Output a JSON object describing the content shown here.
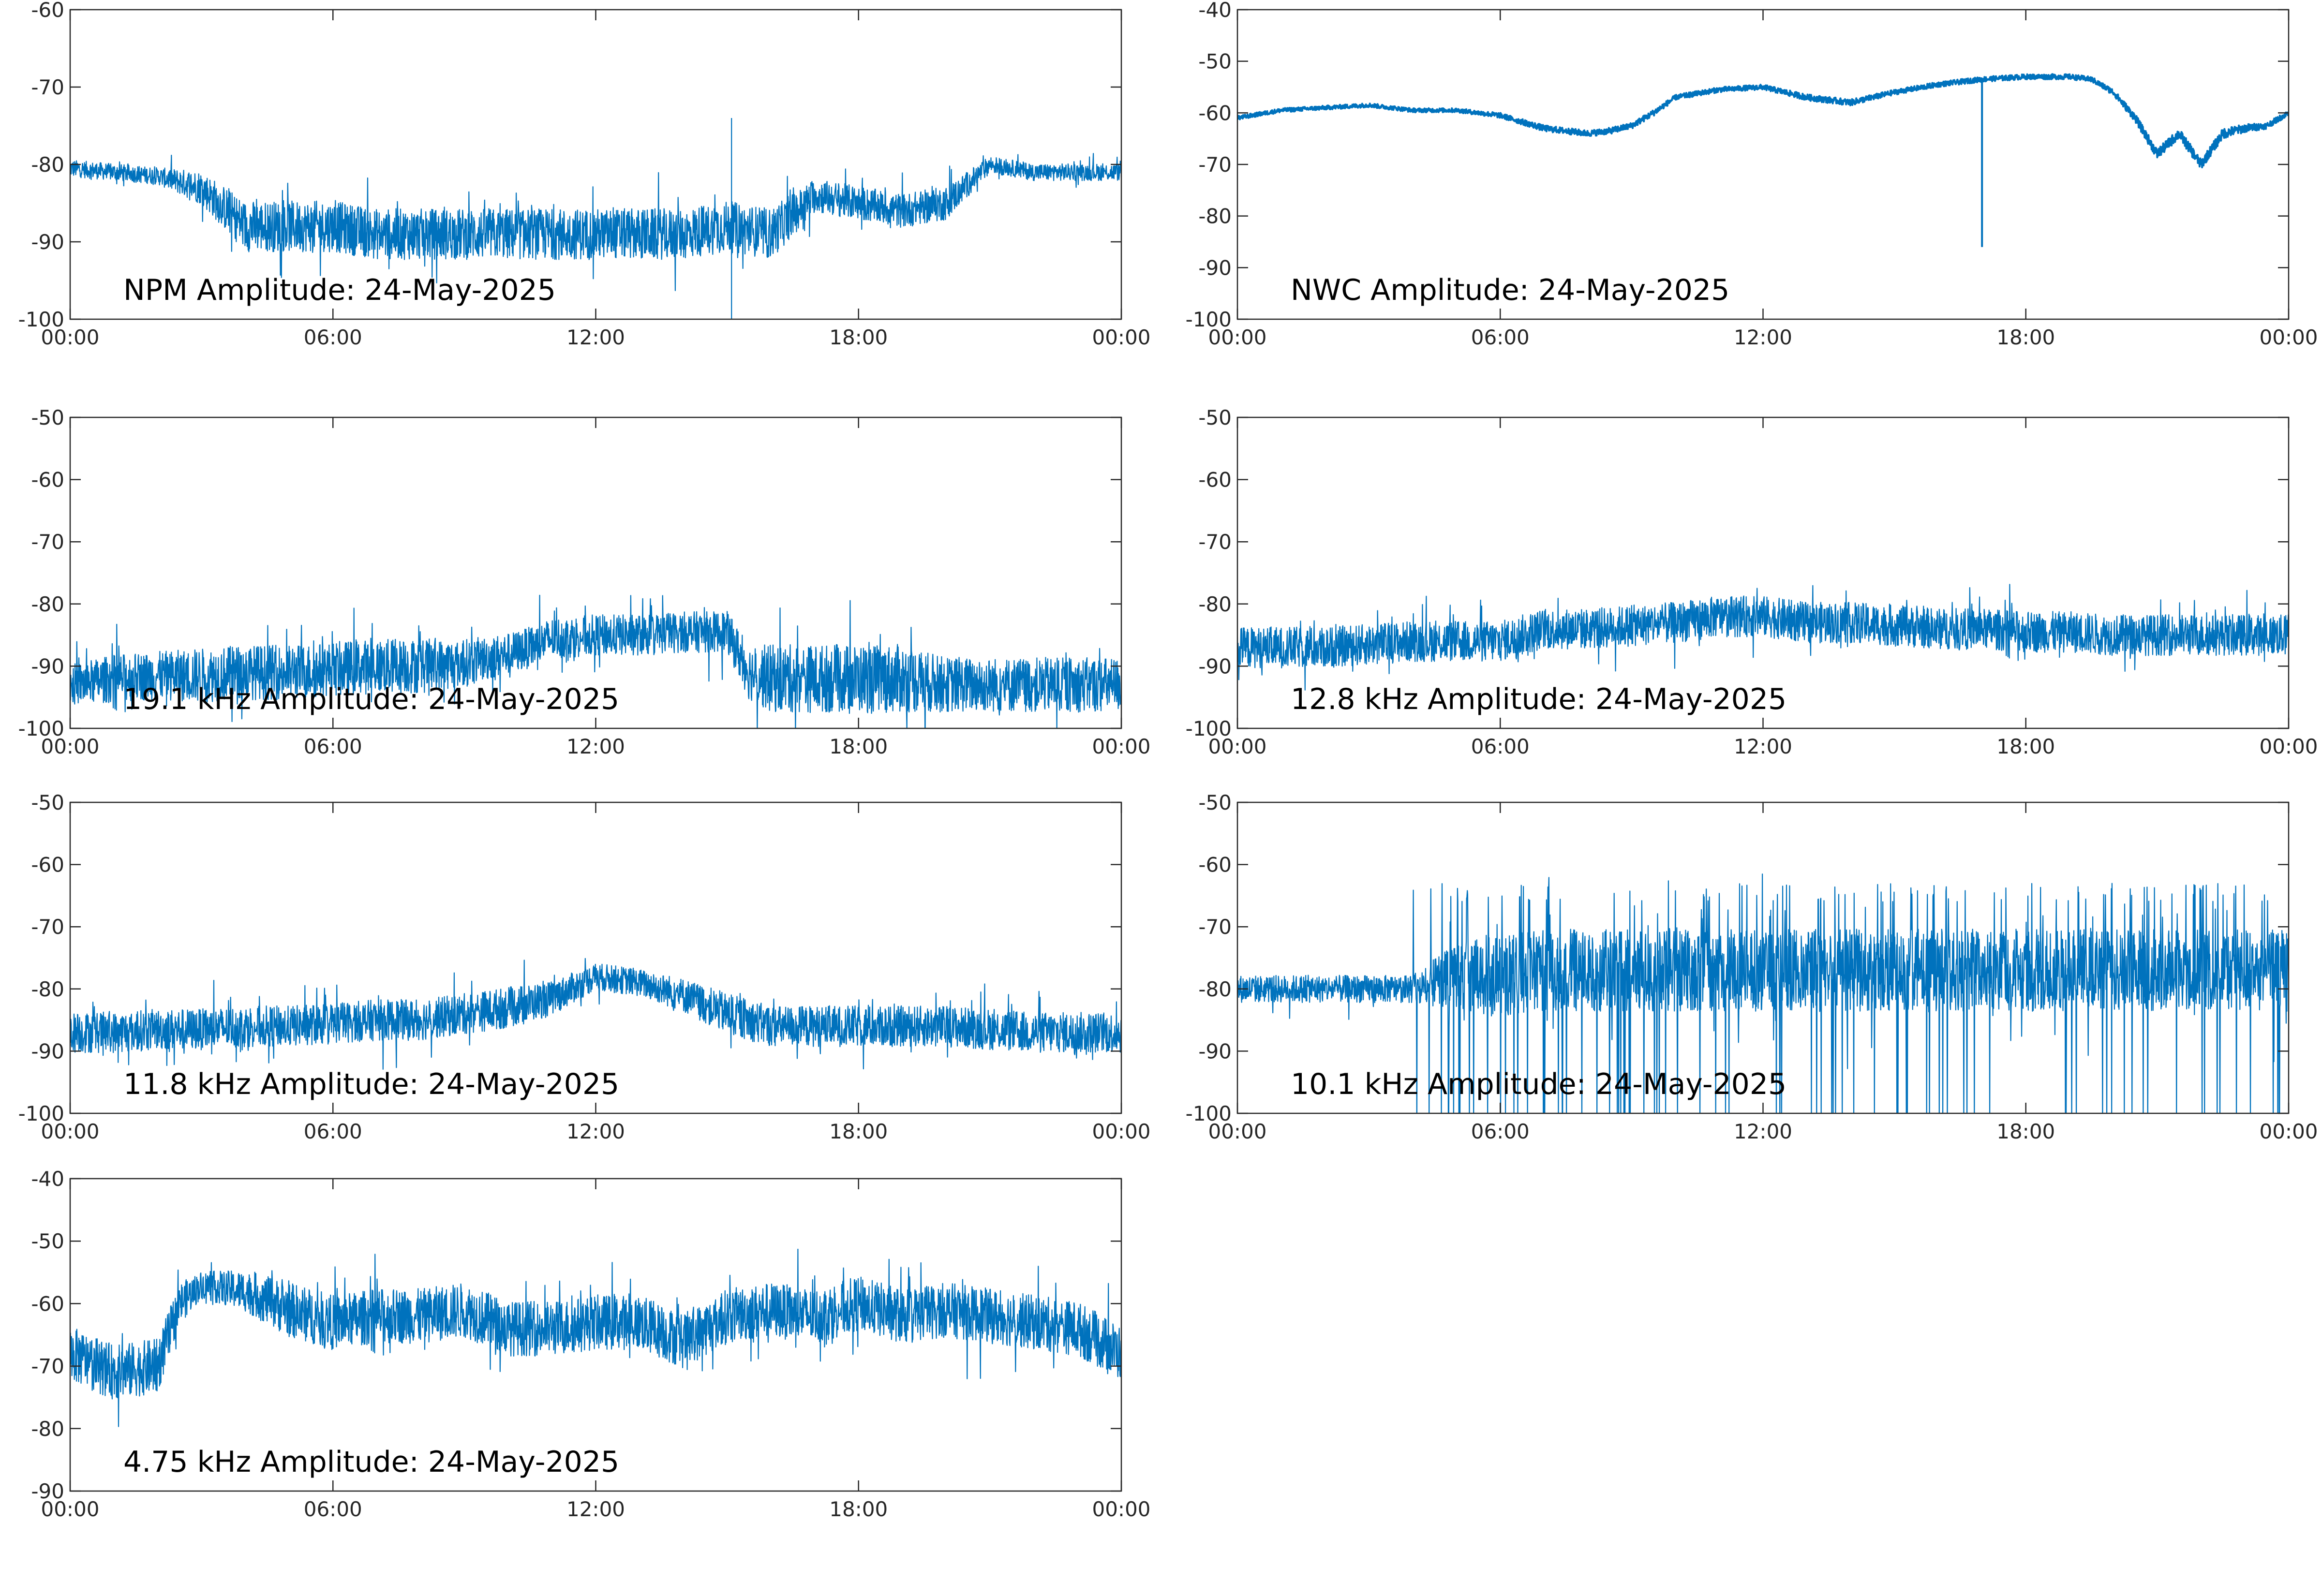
{
  "figure": {
    "background": "#ffffff",
    "line_color": "#0072BD",
    "axis_color": "#262626"
  },
  "chart_data": [
    {
      "type": "line",
      "title": "NPM Amplitude: 24-May-2025",
      "xlabel": "",
      "ylabel": "",
      "x_ticks": [
        "00:00",
        "06:00",
        "12:00",
        "18:00",
        "00:00"
      ],
      "xlim_hours": [
        0,
        24
      ],
      "ylim": [
        -100,
        -60
      ],
      "y_ticks": [
        -100,
        -90,
        -80,
        -70,
        -60
      ],
      "x_hours": [
        0,
        1,
        2,
        3,
        4,
        5,
        6,
        7,
        8,
        9,
        10,
        11,
        12,
        13,
        14,
        15,
        16,
        17,
        18,
        19,
        20,
        21,
        22,
        23,
        24
      ],
      "center": [
        -80.5,
        -81,
        -81.5,
        -83,
        -88,
        -88,
        -88,
        -89,
        -89,
        -89,
        -89,
        -89,
        -89,
        -89,
        -89,
        -88,
        -89,
        -84,
        -85,
        -86,
        -85,
        -80,
        -81,
        -81,
        -81
      ],
      "spread": [
        1,
        1,
        1,
        2,
        3,
        3,
        3,
        3,
        3,
        3,
        3,
        3,
        3,
        3,
        3,
        3,
        3,
        2,
        2,
        2,
        2,
        1,
        1,
        1,
        1
      ],
      "spikes": [
        {
          "x_hour": 15.1,
          "y_top": -74,
          "y_bottom": -100
        }
      ]
    },
    {
      "type": "line",
      "title": "NWC Amplitude: 24-May-2025",
      "xlabel": "",
      "ylabel": "",
      "x_ticks": [
        "00:00",
        "06:00",
        "12:00",
        "18:00",
        "00:00"
      ],
      "xlim_hours": [
        0,
        24
      ],
      "ylim": [
        -100,
        -40
      ],
      "y_ticks": [
        -100,
        -90,
        -80,
        -70,
        -60,
        -50,
        -40
      ],
      "x_hours": [
        0,
        1,
        2,
        3,
        4,
        5,
        6,
        7,
        7.5,
        8,
        8.5,
        9,
        9.5,
        10,
        11,
        12,
        13,
        14,
        15,
        16,
        17,
        18,
        19,
        19.5,
        20,
        20.5,
        21,
        21.5,
        22,
        22.5,
        23,
        23.5,
        24
      ],
      "center": [
        -61,
        -59.5,
        -59,
        -58.5,
        -59.5,
        -59.5,
        -60.5,
        -63,
        -63.5,
        -64,
        -63.5,
        -62.5,
        -60,
        -57,
        -55.5,
        -55,
        -57,
        -58,
        -56,
        -54.5,
        -53.5,
        -53,
        -53,
        -53.5,
        -56,
        -61,
        -68,
        -64,
        -70,
        -64,
        -63,
        -62.5,
        -60
      ],
      "spread": [
        0.4,
        0.4,
        0.4,
        0.4,
        0.4,
        0.4,
        0.5,
        0.6,
        0.6,
        0.6,
        0.6,
        0.6,
        0.6,
        0.5,
        0.5,
        0.5,
        0.6,
        0.6,
        0.5,
        0.5,
        0.5,
        0.5,
        0.5,
        0.5,
        0.6,
        0.8,
        1,
        1,
        1,
        1,
        0.8,
        0.6,
        0.5
      ],
      "spikes": [
        {
          "x_hour": 17,
          "y_top": -53.5,
          "y_bottom": -86
        }
      ]
    },
    {
      "type": "line",
      "title": "19.1 kHz Amplitude: 24-May-2025",
      "xlabel": "",
      "ylabel": "",
      "x_ticks": [
        "00:00",
        "06:00",
        "12:00",
        "18:00",
        "00:00"
      ],
      "xlim_hours": [
        0,
        24
      ],
      "ylim": [
        -100,
        -50
      ],
      "y_ticks": [
        -100,
        -90,
        -80,
        -70,
        -60,
        -50
      ],
      "x_hours": [
        0,
        1,
        2,
        3,
        4,
        5,
        6,
        7,
        8,
        9,
        10,
        10.5,
        11,
        12,
        13,
        14,
        15,
        15.5,
        16,
        17,
        18,
        19,
        20,
        21,
        22,
        23,
        24
      ],
      "center": [
        -93,
        -92,
        -91.5,
        -91.5,
        -91,
        -91,
        -90.5,
        -90,
        -90,
        -89.5,
        -88,
        -87,
        -85.5,
        -85,
        -85,
        -84.5,
        -84.5,
        -91,
        -92,
        -92,
        -92,
        -92,
        -93,
        -93,
        -93,
        -93,
        -93
      ],
      "spread": [
        3,
        3.5,
        3.5,
        4,
        4,
        4,
        4,
        4,
        4,
        3.5,
        3,
        3,
        3,
        3,
        3,
        3,
        3,
        4,
        5,
        5,
        5,
        5,
        4,
        4,
        4,
        4,
        4
      ],
      "spikes": []
    },
    {
      "type": "line",
      "title": "12.8 kHz Amplitude: 24-May-2025",
      "xlabel": "",
      "ylabel": "",
      "x_ticks": [
        "00:00",
        "06:00",
        "12:00",
        "18:00",
        "00:00"
      ],
      "xlim_hours": [
        0,
        24
      ],
      "ylim": [
        -100,
        -50
      ],
      "y_ticks": [
        -100,
        -90,
        -80,
        -70,
        -60,
        -50
      ],
      "x_hours": [
        0,
        1,
        2,
        3,
        4,
        5,
        6,
        7,
        8,
        9,
        10,
        11,
        12,
        13,
        14,
        15,
        16,
        17,
        18,
        19,
        20,
        21,
        22,
        23,
        24
      ],
      "center": [
        -87,
        -87,
        -87,
        -86.5,
        -86,
        -86,
        -86,
        -84,
        -84,
        -83.5,
        -83,
        -82,
        -82,
        -83,
        -83,
        -83.5,
        -84,
        -84,
        -84.5,
        -84.5,
        -85,
        -85,
        -85,
        -85,
        -85
      ],
      "spread": [
        3,
        3,
        3,
        3,
        3,
        3,
        3,
        3,
        3,
        3,
        3,
        3,
        3,
        3,
        3,
        3,
        3,
        3,
        3,
        3,
        3,
        3,
        3,
        3,
        3
      ],
      "spikes": []
    },
    {
      "type": "line",
      "title": "11.8 kHz Amplitude: 24-May-2025",
      "xlabel": "",
      "ylabel": "",
      "x_ticks": [
        "00:00",
        "06:00",
        "12:00",
        "18:00",
        "00:00"
      ],
      "xlim_hours": [
        0,
        24
      ],
      "ylim": [
        -100,
        -50
      ],
      "y_ticks": [
        -100,
        -90,
        -80,
        -70,
        -60,
        -50
      ],
      "x_hours": [
        0,
        1,
        2,
        3,
        4,
        5,
        6,
        7,
        8,
        9,
        10,
        11,
        12,
        13,
        14,
        15,
        16,
        17,
        18,
        19,
        20,
        21,
        22,
        23,
        24
      ],
      "center": [
        -87,
        -87,
        -86.5,
        -86.5,
        -86,
        -86,
        -85.5,
        -85,
        -85,
        -84,
        -83,
        -81.5,
        -78,
        -79,
        -81,
        -84,
        -86,
        -86,
        -86,
        -86,
        -86,
        -86.5,
        -87,
        -87,
        -87
      ],
      "spread": [
        3,
        3,
        3,
        3,
        3,
        3,
        3,
        3,
        3,
        3,
        3,
        2.5,
        2,
        2,
        2.5,
        3,
        3,
        3,
        3,
        3,
        3,
        3,
        3,
        3,
        3
      ],
      "spikes": []
    },
    {
      "type": "line",
      "title": "10.1 kHz Amplitude: 24-May-2025",
      "xlabel": "",
      "ylabel": "",
      "x_ticks": [
        "00:00",
        "06:00",
        "12:00",
        "18:00",
        "00:00"
      ],
      "xlim_hours": [
        0,
        24
      ],
      "ylim": [
        -100,
        -50
      ],
      "y_ticks": [
        -100,
        -90,
        -80,
        -70,
        -60,
        -50
      ],
      "x_hours": [
        0,
        1,
        2,
        3,
        4,
        5,
        6,
        7,
        8,
        9,
        10,
        11,
        12,
        13,
        14,
        15,
        16,
        17,
        18,
        19,
        20,
        21,
        22,
        23,
        24
      ],
      "center": [
        -80,
        -80,
        -80,
        -80,
        -80,
        -78,
        -78,
        -77,
        -77,
        -77,
        -77,
        -77,
        -77,
        -77,
        -77,
        -77,
        -77,
        -77,
        -77,
        -77,
        -77,
        -77,
        -77,
        -77,
        -77
      ],
      "spread": [
        2,
        2,
        2,
        2,
        2,
        5,
        6,
        6,
        6,
        6,
        6,
        6,
        6,
        6,
        6,
        6,
        6,
        6,
        6,
        6,
        6,
        6,
        6,
        6,
        6
      ],
      "spikes": []
    },
    {
      "type": "line",
      "title": "4.75 kHz Amplitude: 24-May-2025",
      "xlabel": "",
      "ylabel": "",
      "x_ticks": [
        "00:00",
        "06:00",
        "12:00",
        "18:00",
        "00:00"
      ],
      "xlim_hours": [
        0,
        24
      ],
      "ylim": [
        -90,
        -40
      ],
      "y_ticks": [
        -90,
        -80,
        -70,
        -60,
        -50,
        -40
      ],
      "x_hours": [
        0,
        1,
        2,
        2.5,
        3,
        4,
        5,
        6,
        7,
        8,
        9,
        10,
        11,
        12,
        13,
        14,
        15,
        16,
        17,
        18,
        19,
        20,
        21,
        22,
        23,
        24
      ],
      "center": [
        -68,
        -71,
        -70,
        -60,
        -57,
        -58,
        -61,
        -63,
        -62,
        -62,
        -61,
        -64,
        -64,
        -63,
        -63,
        -66,
        -62,
        -61,
        -62,
        -60,
        -62,
        -61,
        -62,
        -63,
        -64,
        -68
      ],
      "spread": [
        4,
        4,
        4,
        3,
        2,
        3,
        4,
        4,
        4,
        4,
        4,
        4,
        4,
        4,
        4,
        4,
        4,
        4,
        4,
        4,
        4,
        4,
        4,
        4,
        4,
        4
      ],
      "spikes": []
    }
  ]
}
